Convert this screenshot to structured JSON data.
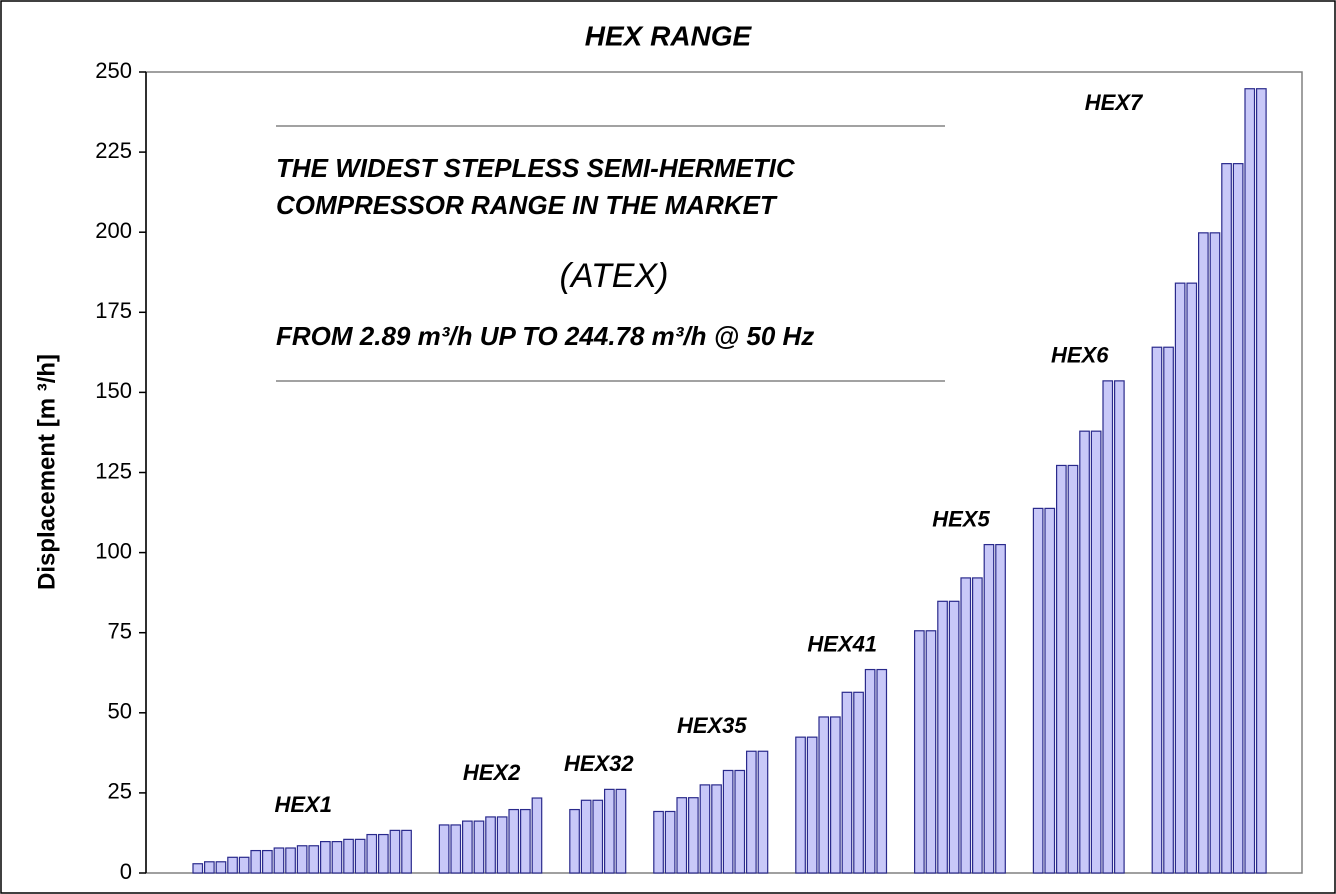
{
  "chart_data": {
    "type": "grouped-bar",
    "title": "HEX  RANGE",
    "y_label": "Displacement [m ³/h]",
    "annotations": [
      "THE WIDEST STEPLESS SEMI-HERMETIC",
      "COMPRESSOR RANGE IN THE MARKET",
      "(ATEX)",
      "FROM 2.89 m³/h UP TO 244.78 m³/h @ 50 Hz"
    ],
    "color": "#c8c8f8",
    "edge_color": "#2a2a8c",
    "ylim": [
      0,
      250
    ],
    "yticks": [
      0,
      25,
      50,
      75,
      100,
      125,
      150,
      175,
      200,
      225,
      250
    ],
    "groups": [
      {
        "label": "HEX1",
        "values": [
          2.89,
          3.5,
          3.5,
          4.9,
          4.9,
          7.0,
          7.0,
          7.8,
          7.8,
          8.5,
          8.5,
          9.8,
          9.8,
          10.5,
          10.5,
          12.0,
          12.0,
          13.3,
          13.3
        ]
      },
      {
        "label": "HEX2",
        "values": [
          15.0,
          15.0,
          16.2,
          16.2,
          17.5,
          17.5,
          19.8,
          19.8,
          23.4
        ]
      },
      {
        "label": "HEX32",
        "values": [
          19.8,
          22.7,
          22.7,
          26.1,
          26.1
        ]
      },
      {
        "label": "HEX35",
        "values": [
          19.2,
          19.2,
          23.5,
          23.5,
          27.5,
          27.5,
          32.0,
          32.0,
          38.0,
          38.0
        ]
      },
      {
        "label": "HEX41",
        "values": [
          42.4,
          42.4,
          48.7,
          48.7,
          56.4,
          56.4,
          63.5,
          63.5
        ]
      },
      {
        "label": "HEX5",
        "values": [
          75.6,
          75.6,
          84.8,
          84.8,
          92.1,
          92.1,
          102.5,
          102.5
        ]
      },
      {
        "label": "HEX6",
        "values": [
          113.8,
          113.8,
          127.2,
          127.2,
          137.9,
          137.9,
          153.6,
          153.6
        ]
      },
      {
        "label": "HEX7",
        "values": [
          164.1,
          164.1,
          184.1,
          184.1,
          199.8,
          199.8,
          221.4,
          221.4,
          244.78,
          244.78
        ]
      }
    ]
  }
}
